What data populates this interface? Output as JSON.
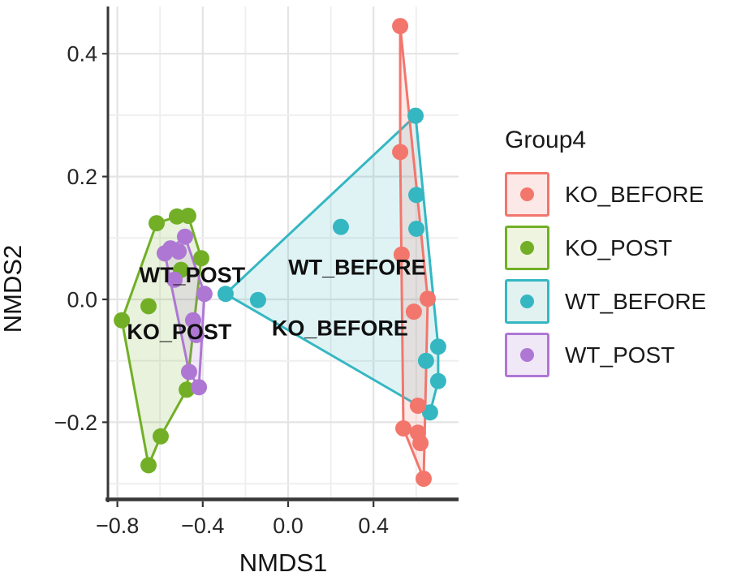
{
  "chart_data": {
    "type": "scatter",
    "title": "",
    "xlabel": "NMDS1",
    "ylabel": "NMDS2",
    "xlim": [
      -0.87,
      0.8
    ],
    "ylim": [
      -0.33,
      0.48
    ],
    "grid": "on",
    "legend_title": "Group4",
    "legend_position": "right",
    "x_tick_values": [
      -0.8,
      -0.4,
      0.0,
      0.4
    ],
    "x_tick_labels": [
      "−0.8",
      "−0.4",
      "0.0",
      "0.4"
    ],
    "x_minor_step": 0.2,
    "y_tick_values": [
      0.4,
      0.2,
      0.0,
      -0.2
    ],
    "y_tick_labels": [
      "0.4",
      "0.2",
      "0.0",
      "−0.2"
    ],
    "y_minor_step": 0.1,
    "series": [
      {
        "name": "KO_BEFORE",
        "color": "#F3766C",
        "key_fill": "#FCE9E7",
        "points": [
          [
            0.525,
            0.445
          ],
          [
            0.525,
            0.24
          ],
          [
            0.532,
            0.073
          ],
          [
            0.654,
            0.001
          ],
          [
            0.589,
            -0.02
          ],
          [
            0.608,
            -0.173
          ],
          [
            0.54,
            -0.21
          ],
          [
            0.608,
            -0.217
          ],
          [
            0.62,
            -0.234
          ],
          [
            0.635,
            -0.292
          ]
        ],
        "hull": [
          [
            0.525,
            0.445
          ],
          [
            0.654,
            0.001
          ],
          [
            0.635,
            -0.292
          ],
          [
            0.54,
            -0.21
          ],
          [
            0.525,
            0.24
          ]
        ],
        "label": {
          "text": "KO_BEFORE",
          "x": 0.243,
          "y": -0.046
        }
      },
      {
        "name": "KO_POST",
        "color": "#72AF26",
        "key_fill": "#EEF4DF",
        "points": [
          [
            -0.616,
            0.124
          ],
          [
            -0.521,
            0.135
          ],
          [
            -0.468,
            0.136
          ],
          [
            -0.407,
            0.067
          ],
          [
            -0.502,
            0.048
          ],
          [
            -0.654,
            -0.011
          ],
          [
            -0.779,
            -0.034
          ],
          [
            -0.475,
            -0.147
          ],
          [
            -0.597,
            -0.223
          ],
          [
            -0.654,
            -0.27
          ]
        ],
        "hull": [
          [
            -0.779,
            -0.034
          ],
          [
            -0.616,
            0.124
          ],
          [
            -0.521,
            0.135
          ],
          [
            -0.468,
            0.136
          ],
          [
            -0.407,
            0.067
          ],
          [
            -0.475,
            -0.147
          ],
          [
            -0.597,
            -0.223
          ],
          [
            -0.654,
            -0.27
          ]
        ],
        "label": {
          "text": "KO_POST",
          "x": -0.51,
          "y": -0.052
        }
      },
      {
        "name": "WT_BEFORE",
        "color": "#35B7C2",
        "key_fill": "#E1F2F1",
        "points": [
          [
            0.597,
            0.299
          ],
          [
            0.247,
            0.118
          ],
          [
            0.601,
            0.17
          ],
          [
            0.601,
            0.115
          ],
          [
            -0.293,
            0.009
          ],
          [
            -0.141,
            -0.001
          ],
          [
            0.703,
            -0.077
          ],
          [
            0.646,
            -0.1
          ],
          [
            0.703,
            -0.133
          ],
          [
            0.665,
            -0.184
          ]
        ],
        "hull": [
          [
            -0.293,
            0.009
          ],
          [
            0.597,
            0.299
          ],
          [
            0.703,
            -0.077
          ],
          [
            0.703,
            -0.133
          ],
          [
            0.665,
            -0.184
          ]
        ],
        "label": {
          "text": "WT_BEFORE",
          "x": 0.323,
          "y": 0.053
        }
      },
      {
        "name": "WT_POST",
        "color": "#AE77D4",
        "key_fill": "#F0E7F7",
        "points": [
          [
            -0.483,
            0.102
          ],
          [
            -0.551,
            0.083
          ],
          [
            -0.513,
            0.078
          ],
          [
            -0.578,
            0.075
          ],
          [
            -0.532,
            0.032
          ],
          [
            -0.392,
            0.009
          ],
          [
            -0.445,
            -0.034
          ],
          [
            -0.43,
            -0.058
          ],
          [
            -0.464,
            -0.118
          ],
          [
            -0.418,
            -0.143
          ]
        ],
        "hull": [
          [
            -0.483,
            0.102
          ],
          [
            -0.392,
            0.009
          ],
          [
            -0.418,
            -0.143
          ],
          [
            -0.464,
            -0.118
          ],
          [
            -0.578,
            0.075
          ]
        ],
        "label": {
          "text": "WT_POST",
          "x": -0.449,
          "y": 0.04
        }
      }
    ]
  }
}
